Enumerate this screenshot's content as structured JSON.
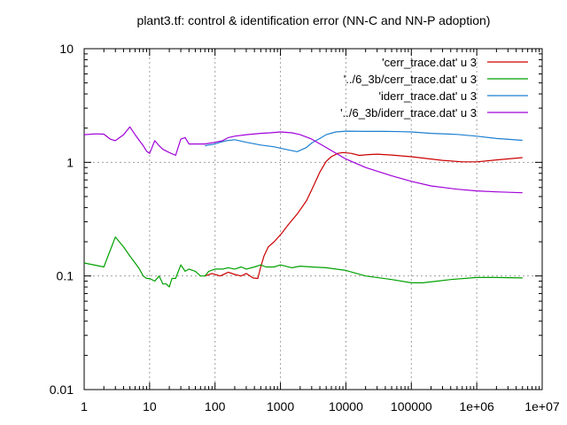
{
  "chart_data": {
    "type": "line",
    "title": "plant3.tf: control & identification error (NN-C and NN-P adoption)",
    "xlabel": "",
    "ylabel": "",
    "xscale": "log",
    "yscale": "log",
    "xlim": [
      1,
      10000000
    ],
    "ylim": [
      0.01,
      10
    ],
    "grid": true,
    "legend_position": "top-right",
    "x_ticks": [
      1,
      10,
      100,
      1000,
      10000,
      100000,
      1000000,
      10000000
    ],
    "x_tick_labels": [
      "1",
      "10",
      "100",
      "1000",
      "10000",
      "100000",
      "1e+06",
      "1e+07"
    ],
    "y_ticks": [
      0.01,
      0.1,
      1,
      10
    ],
    "y_tick_labels": [
      "0.01",
      "0.1",
      "1",
      "10"
    ],
    "series": [
      {
        "name": "'cerr_trace.dat' u 3",
        "color": "#cc0000",
        "x": [
          70,
          90,
          120,
          160,
          200,
          250,
          300,
          380,
          450,
          500,
          560,
          650,
          800,
          1000,
          1300,
          1800,
          2500,
          3200,
          4000,
          5000,
          6000,
          7500,
          9000,
          12000,
          16000,
          22000,
          30000,
          50000,
          100000,
          300000,
          600000,
          1000000,
          2000000,
          5000000
        ],
        "y": [
          0.1,
          0.105,
          0.1,
          0.108,
          0.103,
          0.1,
          0.105,
          0.096,
          0.095,
          0.12,
          0.15,
          0.18,
          0.2,
          0.23,
          0.28,
          0.35,
          0.46,
          0.62,
          0.82,
          1.02,
          1.12,
          1.2,
          1.22,
          1.2,
          1.15,
          1.17,
          1.18,
          1.16,
          1.12,
          1.04,
          1.01,
          1.01,
          1.05,
          1.1
        ]
      },
      {
        "name": "'../6_3b/cerr_trace.dat' u 3",
        "color": "#00a000",
        "x": [
          1,
          2,
          3,
          4,
          5,
          6,
          7,
          8,
          9,
          10,
          12,
          14,
          16,
          18,
          20,
          22,
          25,
          30,
          35,
          40,
          50,
          60,
          70,
          80,
          100,
          130,
          160,
          200,
          250,
          300,
          400,
          500,
          600,
          800,
          1000,
          1500,
          2000,
          3000,
          5000,
          10000,
          20000,
          50000,
          100000,
          150000,
          250000,
          400000,
          1000000,
          2000000,
          5000000
        ],
        "y": [
          0.13,
          0.12,
          0.22,
          0.18,
          0.15,
          0.13,
          0.115,
          0.1,
          0.095,
          0.095,
          0.09,
          0.1,
          0.085,
          0.085,
          0.08,
          0.095,
          0.095,
          0.125,
          0.11,
          0.115,
          0.11,
          0.1,
          0.1,
          0.11,
          0.115,
          0.115,
          0.118,
          0.115,
          0.12,
          0.115,
          0.12,
          0.125,
          0.12,
          0.12,
          0.125,
          0.118,
          0.122,
          0.12,
          0.118,
          0.112,
          0.1,
          0.093,
          0.087,
          0.087,
          0.09,
          0.093,
          0.097,
          0.097,
          0.096
        ]
      },
      {
        "name": "'iderr_trace.dat' u 3",
        "color": "#1c7fd0",
        "x": [
          70,
          80,
          100,
          120,
          150,
          200,
          300,
          500,
          800,
          1200,
          1800,
          2500,
          3000,
          4000,
          5000,
          7000,
          10000,
          20000,
          40000,
          70000,
          100000,
          200000,
          500000,
          1000000,
          2000000,
          5000000
        ],
        "y": [
          1.4,
          1.42,
          1.45,
          1.5,
          1.55,
          1.58,
          1.5,
          1.42,
          1.37,
          1.3,
          1.24,
          1.35,
          1.48,
          1.62,
          1.75,
          1.85,
          1.88,
          1.87,
          1.87,
          1.86,
          1.85,
          1.8,
          1.76,
          1.7,
          1.62,
          1.56
        ]
      },
      {
        "name": "'../6_3b/iderr_trace.dat' u 3",
        "color": "#a000d8",
        "x": [
          1,
          1.5,
          2,
          2.5,
          3,
          4,
          5,
          6,
          7,
          8,
          9,
          10,
          12,
          14,
          16,
          20,
          25,
          30,
          35,
          40,
          50,
          70,
          100,
          130,
          160,
          200,
          300,
          500,
          700,
          1000,
          1500,
          2000,
          3000,
          5000,
          10000,
          20000,
          50000,
          100000,
          200000,
          500000,
          1000000,
          2000000,
          5000000
        ],
        "y": [
          1.75,
          1.78,
          1.77,
          1.6,
          1.55,
          1.75,
          2.05,
          1.75,
          1.55,
          1.4,
          1.25,
          1.2,
          1.55,
          1.4,
          1.3,
          1.22,
          1.15,
          1.6,
          1.65,
          1.45,
          1.45,
          1.45,
          1.5,
          1.55,
          1.65,
          1.7,
          1.75,
          1.8,
          1.82,
          1.85,
          1.82,
          1.75,
          1.6,
          1.35,
          1.07,
          0.9,
          0.76,
          0.68,
          0.62,
          0.58,
          0.56,
          0.55,
          0.54
        ]
      }
    ]
  }
}
